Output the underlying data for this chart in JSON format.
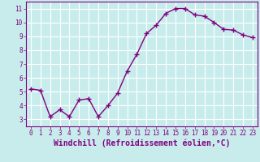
{
  "x": [
    0,
    1,
    2,
    3,
    4,
    5,
    6,
    7,
    8,
    9,
    10,
    11,
    12,
    13,
    14,
    15,
    16,
    17,
    18,
    19,
    20,
    21,
    22,
    23
  ],
  "y": [
    5.2,
    5.1,
    3.2,
    3.7,
    3.2,
    4.4,
    4.5,
    3.2,
    4.0,
    4.9,
    6.5,
    7.7,
    9.2,
    9.8,
    10.65,
    11.0,
    11.0,
    10.55,
    10.45,
    10.0,
    9.5,
    9.45,
    9.1,
    8.9
  ],
  "line_color": "#800080",
  "marker": "+",
  "marker_size": 4,
  "marker_linewidth": 1.0,
  "bg_color": "#c8ecec",
  "grid_color": "#ffffff",
  "xlabel": "Windchill (Refroidissement éolien,°C)",
  "xlabel_color": "#800080",
  "tick_color": "#800080",
  "xlim": [
    -0.5,
    23.5
  ],
  "ylim": [
    2.5,
    11.5
  ],
  "yticks": [
    3,
    4,
    5,
    6,
    7,
    8,
    9,
    10,
    11
  ],
  "xticks": [
    0,
    1,
    2,
    3,
    4,
    5,
    6,
    7,
    8,
    9,
    10,
    11,
    12,
    13,
    14,
    15,
    16,
    17,
    18,
    19,
    20,
    21,
    22,
    23
  ],
  "tick_fontsize": 5.5,
  "xlabel_fontsize": 7.0,
  "spine_color": "#800080",
  "linewidth": 1.0
}
